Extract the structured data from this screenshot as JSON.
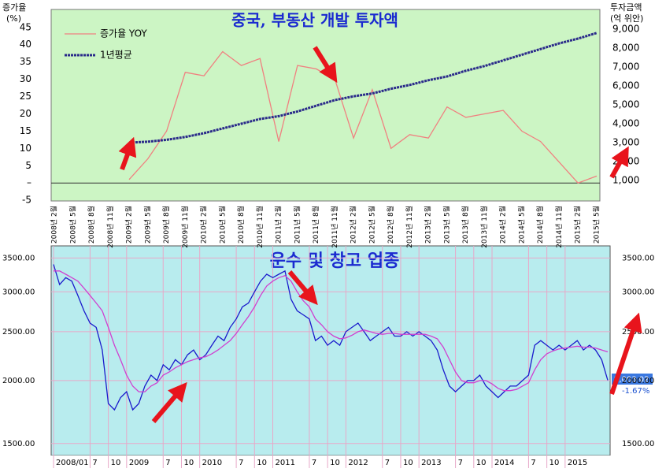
{
  "chart_data": [
    {
      "type": "line",
      "title": "중국, 부동산 개발 투자액",
      "y_label": "증가율",
      "y_label_unit": "(%)",
      "y2_label": "투자금액",
      "y2_label_unit": "(억 위안)",
      "categories": [
        "2008년 2월",
        "2008년 5월",
        "2008년 8월",
        "2008년 11월",
        "2009년 2월",
        "2009년 5월",
        "2009년 8월",
        "2009년 11월",
        "2010년 2월",
        "2010년 5월",
        "2010년 8월",
        "2010년 11월",
        "2011년 2월",
        "2011년 5월",
        "2011년 8월",
        "2011년 11월",
        "2012년 2월",
        "2012년 5월",
        "2012년 8월",
        "2012년 11월",
        "2013년 2월",
        "2013년 5월",
        "2013년 8월",
        "2013년 11월",
        "2014년 2월",
        "2014년 5월",
        "2014년 8월",
        "2014년 11월",
        "2015년 2월",
        "2015년 5월"
      ],
      "series": [
        {
          "name": "증가율 YOY",
          "color": "#f08080",
          "values": [
            null,
            null,
            null,
            null,
            1,
            7,
            15,
            32,
            31,
            38,
            34,
            36,
            12,
            34,
            33,
            30,
            13,
            27,
            10,
            14,
            13,
            22,
            19,
            20,
            21,
            15,
            12,
            6,
            0,
            2
          ]
        },
        {
          "name": "1년평균",
          "color": "#2a2a8a",
          "axis": "y2",
          "values": [
            null,
            null,
            null,
            null,
            3000,
            3050,
            3150,
            3300,
            3500,
            3750,
            4000,
            4250,
            4400,
            4650,
            4950,
            5250,
            5450,
            5600,
            5850,
            6050,
            6300,
            6500,
            6800,
            7050,
            7350,
            7650,
            7950,
            8250,
            8500,
            8800
          ]
        }
      ],
      "ylim": [
        -5.2,
        50.2
      ],
      "yticks": [
        -5,
        {
          "value": 0,
          "label": "–"
        },
        5,
        10,
        15,
        20,
        25,
        30,
        35,
        40,
        45
      ],
      "y2lim": [
        -83,
        10042
      ],
      "y2ticks": [
        {
          "value": 1000,
          "label": "1,000"
        },
        {
          "value": 2000,
          "label": "2,000"
        },
        {
          "value": 3000,
          "label": "3,000"
        },
        {
          "value": 4000,
          "label": "4,000"
        },
        {
          "value": 5000,
          "label": "5,000"
        },
        {
          "value": 6000,
          "label": "6,000"
        },
        {
          "value": 7000,
          "label": "7,000"
        },
        {
          "value": 8000,
          "label": "8,000"
        },
        {
          "value": 9000,
          "label": "9,000"
        }
      ],
      "legend": "top-left",
      "grid": false
    },
    {
      "type": "line",
      "title": "운수 및 창고 업종",
      "log_scale": true,
      "categories": [
        "2008/01",
        null,
        null,
        null,
        null,
        null,
        "7",
        null,
        null,
        "10",
        null,
        null,
        "2009",
        null,
        null,
        null,
        null,
        null,
        "7",
        null,
        null,
        "10",
        null,
        null,
        "2010",
        null,
        null,
        null,
        null,
        null,
        "7",
        null,
        null,
        "10",
        null,
        null,
        "2011",
        null,
        null,
        null,
        null,
        null,
        "7",
        null,
        null,
        "10",
        null,
        null,
        "2012",
        null,
        null,
        null,
        null,
        null,
        "7",
        null,
        null,
        "10",
        null,
        null,
        "2013",
        null,
        null,
        null,
        null,
        null,
        "7",
        null,
        null,
        "10",
        null,
        null,
        "2014",
        null,
        null,
        null,
        null,
        null,
        "7",
        null,
        null,
        "10",
        null,
        null,
        "2015",
        null,
        null,
        null,
        null,
        null,
        null,
        null
      ],
      "series": [
        {
          "color": "#1a1acc",
          "values": [
            3400,
            3100,
            3200,
            3150,
            2950,
            2750,
            2600,
            2550,
            2300,
            1800,
            1750,
            1850,
            1900,
            1750,
            1800,
            1950,
            2050,
            2000,
            2150,
            2100,
            2200,
            2150,
            2250,
            2300,
            2200,
            2250,
            2350,
            2450,
            2400,
            2550,
            2650,
            2800,
            2850,
            3000,
            3150,
            3250,
            3200,
            3250,
            3300,
            2900,
            2750,
            2700,
            2650,
            2400,
            2450,
            2350,
            2400,
            2350,
            2500,
            2550,
            2600,
            2500,
            2400,
            2450,
            2500,
            2550,
            2450,
            2450,
            2500,
            2450,
            2500,
            2450,
            2400,
            2300,
            2100,
            1950,
            1900,
            1950,
            2000,
            2000,
            2050,
            1950,
            1900,
            1850,
            1900,
            1950,
            1950,
            2000,
            2050,
            2350,
            2400,
            2350,
            2300,
            2350,
            2300,
            2350,
            2400,
            2300,
            2350,
            2300,
            2200,
            2003
          ]
        },
        {
          "color": "#d040d0",
          "values": [
            3300,
            3300,
            3250,
            3200,
            3150,
            3050,
            2950,
            2850,
            2750,
            2550,
            2350,
            2200,
            2050,
            1950,
            1900,
            1900,
            1950,
            1980,
            2050,
            2080,
            2120,
            2150,
            2180,
            2200,
            2220,
            2230,
            2260,
            2300,
            2350,
            2400,
            2480,
            2580,
            2680,
            2800,
            2950,
            3080,
            3150,
            3200,
            3230,
            3150,
            3000,
            2880,
            2800,
            2650,
            2580,
            2500,
            2450,
            2420,
            2430,
            2460,
            2500,
            2520,
            2500,
            2480,
            2470,
            2480,
            2480,
            2470,
            2470,
            2470,
            2470,
            2470,
            2450,
            2420,
            2330,
            2200,
            2080,
            2000,
            1980,
            1980,
            2000,
            2000,
            1970,
            1930,
            1910,
            1910,
            1920,
            1950,
            1980,
            2100,
            2200,
            2260,
            2290,
            2310,
            2320,
            2330,
            2340,
            2330,
            2330,
            2320,
            2300,
            2280
          ]
        }
      ],
      "ylim": [
        1420,
        3700
      ],
      "yticks": [
        {
          "value": 1500,
          "label": "1500.00"
        },
        {
          "value": 2000,
          "label": "2000.00"
        },
        {
          "value": 2500,
          "label": "2500.00"
        },
        {
          "value": 3000,
          "label": "3000.00"
        },
        {
          "value": 3500,
          "label": "3500.00"
        }
      ],
      "last_value_label": "2,003.02",
      "change_label": "-1.67%",
      "grid": true
    }
  ]
}
